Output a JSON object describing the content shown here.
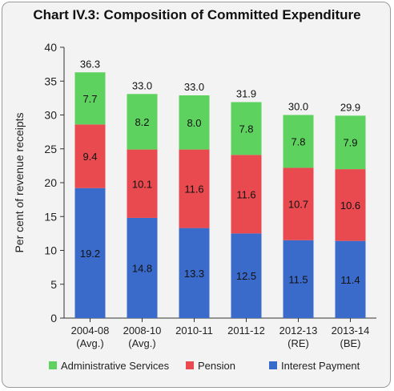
{
  "title": "Chart IV.3: Composition of Committed Expenditure",
  "chart_data": {
    "type": "bar",
    "stacked": true,
    "title": "Chart IV.3: Composition of Committed Expenditure",
    "xlabel": "",
    "ylabel": "Per cent of revenue receipts",
    "ylim": [
      0,
      40
    ],
    "yticks": [
      "0",
      "5",
      "10",
      "15",
      "20",
      "25",
      "30",
      "35",
      "40"
    ],
    "grid": false,
    "legend_position": "bottom",
    "categories": [
      [
        "2004-08",
        "(Avg.)"
      ],
      [
        "2008-10",
        "(Avg.)"
      ],
      [
        "2010-11"
      ],
      [
        "2011-12"
      ],
      [
        "2012-13",
        "(RE)"
      ],
      [
        "2013-14",
        "(BE)"
      ]
    ],
    "series": [
      {
        "name": "Interest Payment",
        "color": "#3a6bcb",
        "values": [
          19.2,
          14.8,
          13.3,
          12.5,
          11.5,
          11.4
        ],
        "labels": [
          "19.2",
          "14.8",
          "13.3",
          "12.5",
          "11.5",
          "11.4"
        ]
      },
      {
        "name": "Pension",
        "color": "#e84a50",
        "values": [
          9.4,
          10.1,
          11.6,
          11.6,
          10.7,
          10.6
        ],
        "labels": [
          "9.4",
          "10.1",
          "11.6",
          "11.6",
          "10.7",
          "10.6"
        ]
      },
      {
        "name": "Administrative Services",
        "color": "#5ed25e",
        "values": [
          7.7,
          8.2,
          8.0,
          7.8,
          7.8,
          7.9
        ],
        "labels": [
          "7.7",
          "8.2",
          "8.0",
          "7.8",
          "7.8",
          "7.9"
        ]
      }
    ],
    "totals": [
      "36.3",
      "33.0",
      "33.0",
      "31.9",
      "30.0",
      "29.9"
    ],
    "legend_order": [
      "Administrative Services",
      "Pension",
      "Interest Payment"
    ]
  }
}
